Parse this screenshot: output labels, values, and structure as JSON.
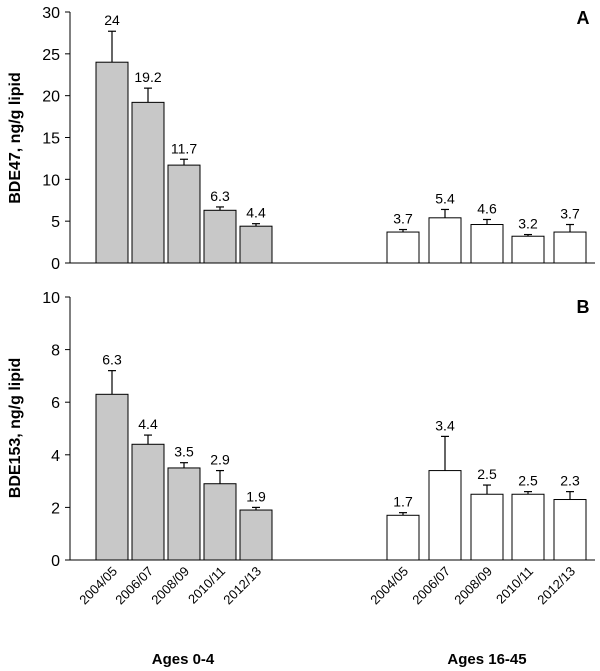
{
  "chart_data": [
    {
      "type": "bar",
      "panel_label": "A",
      "ylabel": "BDE47, ng/g lipid",
      "ylim": [
        0,
        30
      ],
      "yticks": [
        0,
        5,
        10,
        15,
        20,
        25,
        30
      ],
      "categories": [
        "2004/05",
        "2006/07",
        "2008/09",
        "2010/11",
        "2012/13"
      ],
      "groups": [
        {
          "name": "Ages 0-4",
          "color": "#c8c8c8",
          "values": [
            24,
            19.2,
            11.7,
            6.3,
            4.4
          ],
          "error_upper": [
            27.7,
            20.9,
            12.4,
            6.7,
            4.7
          ],
          "labels": [
            "24",
            "19.2",
            "11.7",
            "6.3",
            "4.4"
          ]
        },
        {
          "name": "Ages 16-45",
          "color": "#ffffff",
          "values": [
            3.7,
            5.4,
            4.6,
            3.2,
            3.7
          ],
          "error_upper": [
            4.0,
            6.4,
            5.2,
            3.4,
            4.6
          ],
          "labels": [
            "3.7",
            "5.4",
            "4.6",
            "3.2",
            "3.7"
          ]
        }
      ],
      "grid": false
    },
    {
      "type": "bar",
      "panel_label": "B",
      "ylabel": "BDE153, ng/g lipid",
      "ylim": [
        0,
        10
      ],
      "yticks": [
        0,
        2,
        4,
        6,
        8,
        10
      ],
      "categories": [
        "2004/05",
        "2006/07",
        "2008/09",
        "2010/11",
        "2012/13"
      ],
      "groups": [
        {
          "name": "Ages 0-4",
          "color": "#c8c8c8",
          "values": [
            6.3,
            4.4,
            3.5,
            2.9,
            1.9
          ],
          "error_upper": [
            7.2,
            4.75,
            3.7,
            3.4,
            2.0
          ],
          "labels": [
            "6.3",
            "4.4",
            "3.5",
            "2.9",
            "1.9"
          ]
        },
        {
          "name": "Ages 16-45",
          "color": "#ffffff",
          "values": [
            1.7,
            3.4,
            2.5,
            2.5,
            2.3
          ],
          "error_upper": [
            1.8,
            4.7,
            2.85,
            2.6,
            2.6
          ],
          "labels": [
            "1.7",
            "3.4",
            "2.5",
            "2.5",
            "2.3"
          ]
        }
      ],
      "grid": false
    }
  ]
}
